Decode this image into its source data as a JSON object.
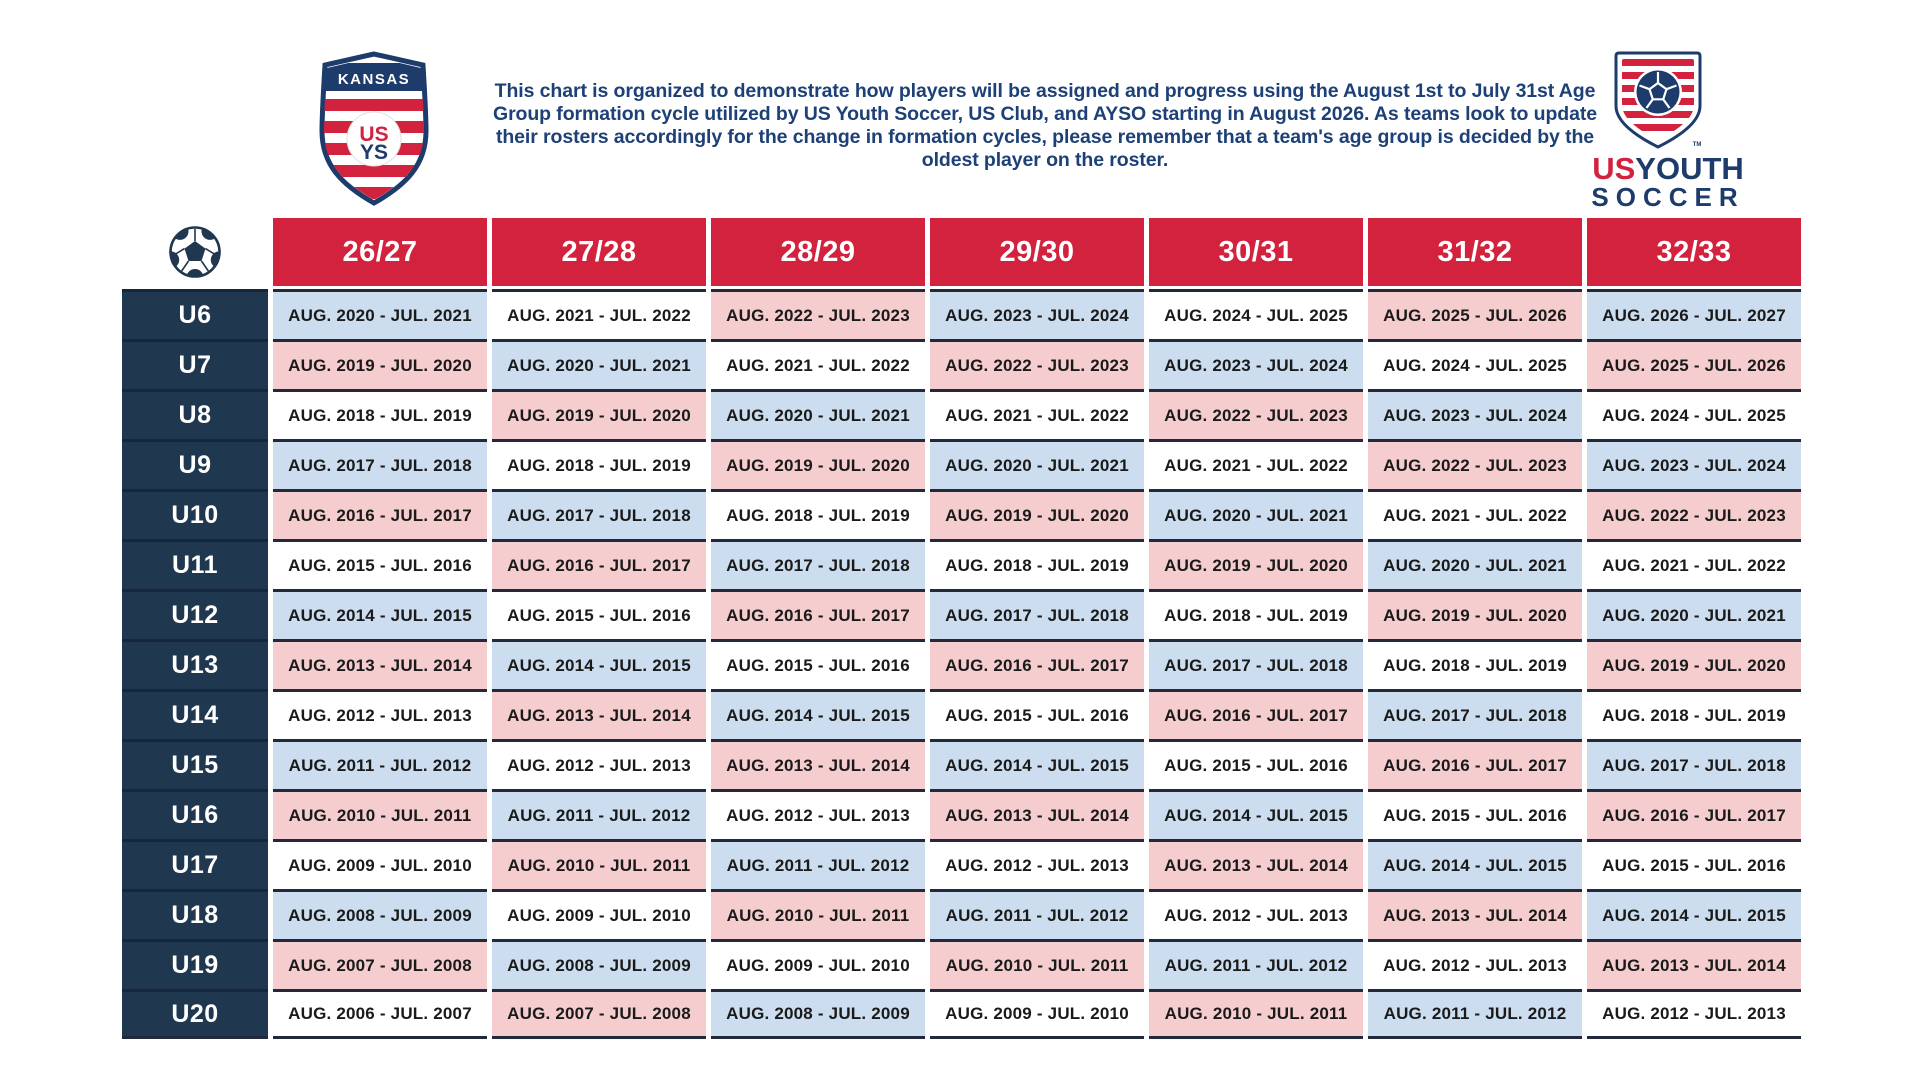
{
  "header": {
    "description_lines": [
      "This chart is organized to demonstrate how players will be assigned and progress using the August 1st to July 31st Age",
      "Group formation cycle utilized by US Youth Soccer, US Club, and AYSO starting in August 2026. As teams look to update",
      "their rosters accordingly for the change in formation cycles, please remember that a team's age group is decided by the",
      "oldest player on the roster."
    ],
    "kansas_logo": {
      "region": "KANSAS",
      "us": "US",
      "ys": "YS"
    },
    "usys_logo": {
      "us": "US",
      "youth": "YOUTH",
      "soccer": "SOCCER",
      "tm": "TM"
    }
  },
  "colors": {
    "red": "#d2223e",
    "navy": "#1f374f",
    "logo_navy": "#1d3b6b",
    "text_navy": "#1d4077",
    "cell_blue": "#cbddef",
    "cell_pink": "#f5cdce"
  },
  "chart_data": {
    "type": "table",
    "title": "US Youth Soccer age group formation chart (August 1 - July 31 cycle)",
    "columns": [
      "26/27",
      "27/28",
      "28/29",
      "29/30",
      "30/31",
      "31/32",
      "32/33"
    ],
    "row_labels": [
      "U6",
      "U7",
      "U8",
      "U9",
      "U10",
      "U11",
      "U12",
      "U13",
      "U14",
      "U15",
      "U16",
      "U17",
      "U18",
      "U19",
      "U20"
    ],
    "rows": [
      {
        "age": "U6",
        "texts": [
          "AUG. 2020 - JUL. 2021",
          "AUG. 2021 - JUL. 2022",
          "AUG. 2022 - JUL. 2023",
          "AUG. 2023 - JUL. 2024",
          "AUG. 2024 - JUL. 2025",
          "AUG. 2025 - JUL. 2026",
          "AUG. 2026 - JUL. 2027"
        ],
        "bgs": [
          "blue",
          "white",
          "pink",
          "blue",
          "white",
          "pink",
          "blue"
        ]
      },
      {
        "age": "U7",
        "texts": [
          "AUG. 2019 - JUL. 2020",
          "AUG. 2020 - JUL. 2021",
          "AUG. 2021 - JUL. 2022",
          "AUG. 2022 - JUL. 2023",
          "AUG. 2023 - JUL. 2024",
          "AUG. 2024 - JUL. 2025",
          "AUG. 2025 - JUL. 2026"
        ],
        "bgs": [
          "pink",
          "blue",
          "white",
          "pink",
          "blue",
          "white",
          "pink"
        ]
      },
      {
        "age": "U8",
        "texts": [
          "AUG. 2018 - JUL. 2019",
          "AUG. 2019 - JUL. 2020",
          "AUG. 2020 - JUL. 2021",
          "AUG. 2021 - JUL. 2022",
          "AUG. 2022 - JUL. 2023",
          "AUG. 2023 - JUL. 2024",
          "AUG. 2024 - JUL. 2025"
        ],
        "bgs": [
          "white",
          "pink",
          "blue",
          "white",
          "pink",
          "blue",
          "white"
        ]
      },
      {
        "age": "U9",
        "texts": [
          "AUG. 2017 - JUL. 2018",
          "AUG. 2018 - JUL. 2019",
          "AUG. 2019 - JUL. 2020",
          "AUG. 2020 - JUL. 2021",
          "AUG. 2021 - JUL. 2022",
          "AUG. 2022 - JUL. 2023",
          "AUG. 2023 - JUL. 2024"
        ],
        "bgs": [
          "blue",
          "white",
          "pink",
          "blue",
          "white",
          "pink",
          "blue"
        ]
      },
      {
        "age": "U10",
        "texts": [
          "AUG. 2016 - JUL. 2017",
          "AUG. 2017 - JUL. 2018",
          "AUG. 2018 - JUL. 2019",
          "AUG. 2019 - JUL. 2020",
          "AUG. 2020 - JUL. 2021",
          "AUG. 2021 - JUL. 2022",
          "AUG. 2022 - JUL. 2023"
        ],
        "bgs": [
          "pink",
          "blue",
          "white",
          "pink",
          "blue",
          "white",
          "pink"
        ]
      },
      {
        "age": "U11",
        "texts": [
          "AUG. 2015 - JUL. 2016",
          "AUG. 2016 - JUL. 2017",
          "AUG. 2017 - JUL. 2018",
          "AUG. 2018 - JUL. 2019",
          "AUG. 2019 - JUL. 2020",
          "AUG. 2020 - JUL. 2021",
          "AUG. 2021 - JUL. 2022"
        ],
        "bgs": [
          "white",
          "pink",
          "blue",
          "white",
          "pink",
          "blue",
          "white"
        ]
      },
      {
        "age": "U12",
        "texts": [
          "AUG. 2014 - JUL. 2015",
          "AUG. 2015 - JUL. 2016",
          "AUG. 2016 - JUL. 2017",
          "AUG. 2017 - JUL. 2018",
          "AUG. 2018 - JUL. 2019",
          "AUG. 2019 - JUL. 2020",
          "AUG. 2020 - JUL. 2021"
        ],
        "bgs": [
          "blue",
          "white",
          "pink",
          "blue",
          "white",
          "pink",
          "blue"
        ]
      },
      {
        "age": "U13",
        "texts": [
          "AUG. 2013 - JUL. 2014",
          "AUG. 2014 - JUL. 2015",
          "AUG. 2015 - JUL. 2016",
          "AUG. 2016 - JUL. 2017",
          "AUG. 2017 - JUL. 2018",
          "AUG. 2018 - JUL. 2019",
          "AUG. 2019 - JUL. 2020"
        ],
        "bgs": [
          "pink",
          "blue",
          "white",
          "pink",
          "blue",
          "white",
          "pink"
        ]
      },
      {
        "age": "U14",
        "texts": [
          "AUG. 2012 - JUL. 2013",
          "AUG. 2013 - JUL. 2014",
          "AUG. 2014 - JUL. 2015",
          "AUG. 2015 - JUL. 2016",
          "AUG. 2016 - JUL. 2017",
          "AUG. 2017 - JUL. 2018",
          "AUG. 2018 - JUL. 2019"
        ],
        "bgs": [
          "white",
          "pink",
          "blue",
          "white",
          "pink",
          "blue",
          "white"
        ]
      },
      {
        "age": "U15",
        "texts": [
          "AUG. 2011 - JUL. 2012",
          "AUG. 2012 - JUL. 2013",
          "AUG. 2013 - JUL. 2014",
          "AUG. 2014 - JUL. 2015",
          "AUG. 2015 - JUL. 2016",
          "AUG. 2016 - JUL. 2017",
          "AUG. 2017 - JUL. 2018"
        ],
        "bgs": [
          "blue",
          "white",
          "pink",
          "blue",
          "white",
          "pink",
          "blue"
        ]
      },
      {
        "age": "U16",
        "texts": [
          "AUG. 2010 - JUL. 2011",
          "AUG. 2011 - JUL. 2012",
          "AUG. 2012 - JUL. 2013",
          "AUG. 2013 - JUL. 2014",
          "AUG. 2014 - JUL. 2015",
          "AUG. 2015 - JUL. 2016",
          "AUG. 2016 - JUL. 2017"
        ],
        "bgs": [
          "pink",
          "blue",
          "white",
          "pink",
          "blue",
          "white",
          "pink"
        ]
      },
      {
        "age": "U17",
        "texts": [
          "AUG. 2009 - JUL. 2010",
          "AUG. 2010 - JUL. 2011",
          "AUG. 2011 - JUL. 2012",
          "AUG. 2012 - JUL. 2013",
          "AUG. 2013 - JUL. 2014",
          "AUG. 2014 - JUL. 2015",
          "AUG. 2015 - JUL. 2016"
        ],
        "bgs": [
          "white",
          "pink",
          "blue",
          "white",
          "pink",
          "blue",
          "white"
        ]
      },
      {
        "age": "U18",
        "texts": [
          "AUG. 2008 - JUL. 2009",
          "AUG. 2009 - JUL. 2010",
          "AUG. 2010 - JUL. 2011",
          "AUG. 2011 - JUL. 2012",
          "AUG. 2012 - JUL. 2013",
          "AUG. 2013 - JUL. 2014",
          "AUG. 2014 - JUL. 2015"
        ],
        "bgs": [
          "blue",
          "white",
          "pink",
          "blue",
          "white",
          "pink",
          "blue"
        ]
      },
      {
        "age": "U19",
        "texts": [
          "AUG. 2007 - JUL. 2008",
          "AUG. 2008 - JUL. 2009",
          "AUG. 2009 - JUL. 2010",
          "AUG. 2010 - JUL. 2011",
          "AUG. 2011 - JUL. 2012",
          "AUG. 2012 - JUL. 2013",
          "AUG. 2013 - JUL. 2014"
        ],
        "bgs": [
          "pink",
          "blue",
          "white",
          "pink",
          "blue",
          "white",
          "pink"
        ]
      },
      {
        "age": "U20",
        "texts": [
          "AUG. 2006 - JUL. 2007",
          "AUG. 2007 - JUL. 2008",
          "AUG. 2008 - JUL. 2009",
          "AUG. 2009 - JUL. 2010",
          "AUG. 2010 - JUL. 2011",
          "AUG. 2011 - JUL. 2012",
          "AUG. 2012 - JUL. 2013"
        ],
        "bgs": [
          "white",
          "pink",
          "blue",
          "white",
          "pink",
          "blue",
          "white"
        ]
      }
    ],
    "legend": {
      "blue": "#cbddef",
      "pink": "#f5cdce",
      "white": "#ffffff"
    },
    "grid": "navy horizontal rules between rows, white gaps between columns"
  }
}
